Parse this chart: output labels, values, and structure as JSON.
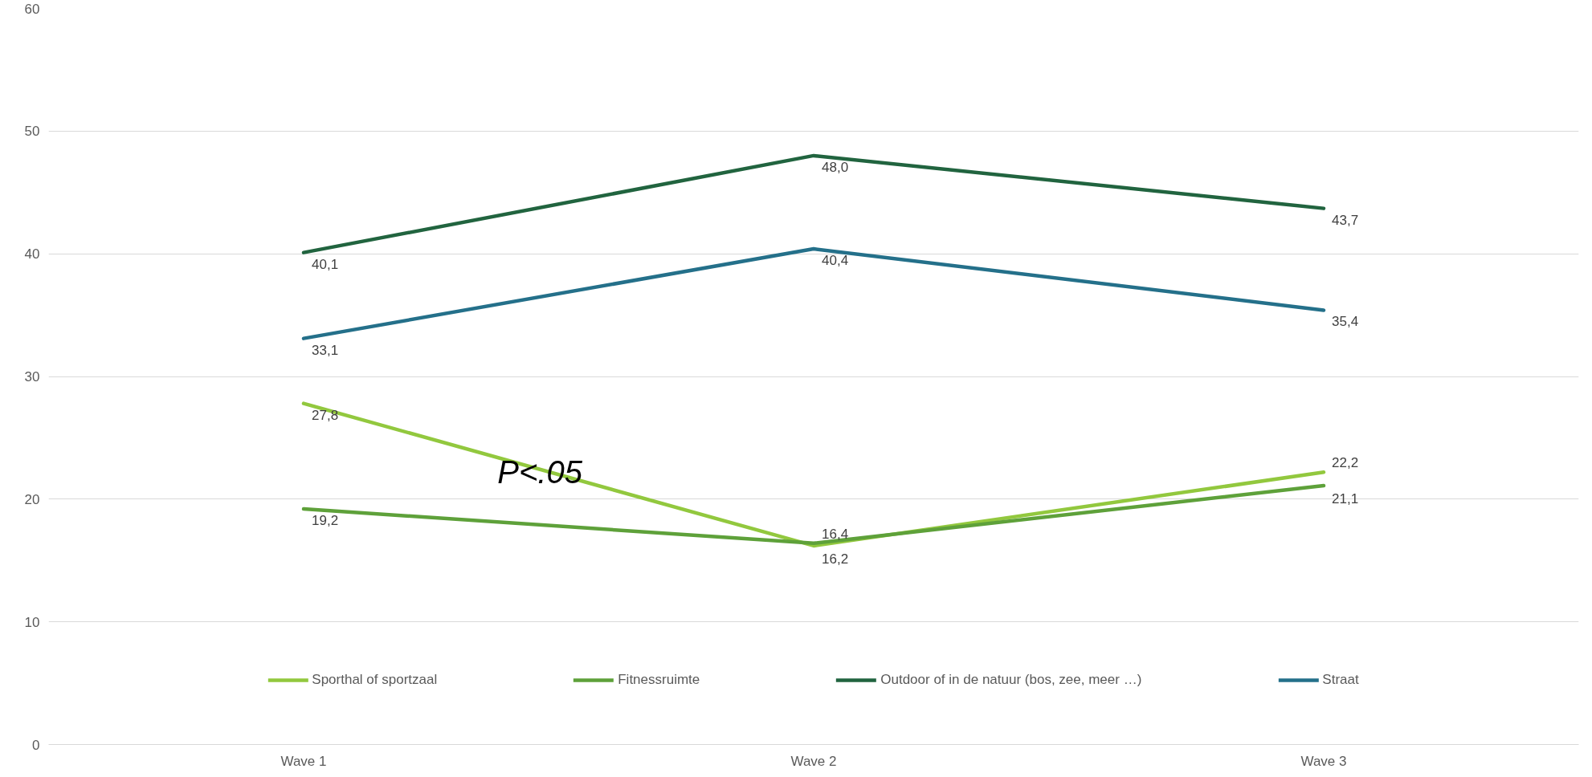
{
  "chart_data": {
    "type": "line",
    "categories": [
      "Wave 1",
      "Wave 2",
      "Wave 3"
    ],
    "series": [
      {
        "name": "Sporthal of sportzaal",
        "color": "#92c83e",
        "values": [
          27.8,
          16.2,
          22.2
        ],
        "value_labels": [
          "27,8",
          "16,2",
          "22,2"
        ]
      },
      {
        "name": "Fitnessruimte",
        "color": "#5ea13a",
        "values": [
          19.2,
          16.4,
          21.1
        ],
        "value_labels": [
          "19,2",
          "16,4",
          "21,1"
        ]
      },
      {
        "name": "Outdoor of in de natuur (bos, zee, meer …)",
        "color": "#21643f",
        "values": [
          40.1,
          48.0,
          43.7
        ],
        "value_labels": [
          "40,1",
          "48,0",
          "43,7"
        ]
      },
      {
        "name": "Straat",
        "color": "#24708a",
        "values": [
          33.1,
          40.4,
          35.4
        ],
        "value_labels": [
          "33,1",
          "40,4",
          "35,4"
        ]
      }
    ],
    "ylim": [
      0,
      60
    ],
    "yticks": [
      0,
      10,
      20,
      30,
      40,
      50,
      60
    ],
    "grid": "y",
    "legend": "bottom",
    "marker": "none",
    "line_style": "solid",
    "annotations": [
      "P<.05"
    ]
  }
}
